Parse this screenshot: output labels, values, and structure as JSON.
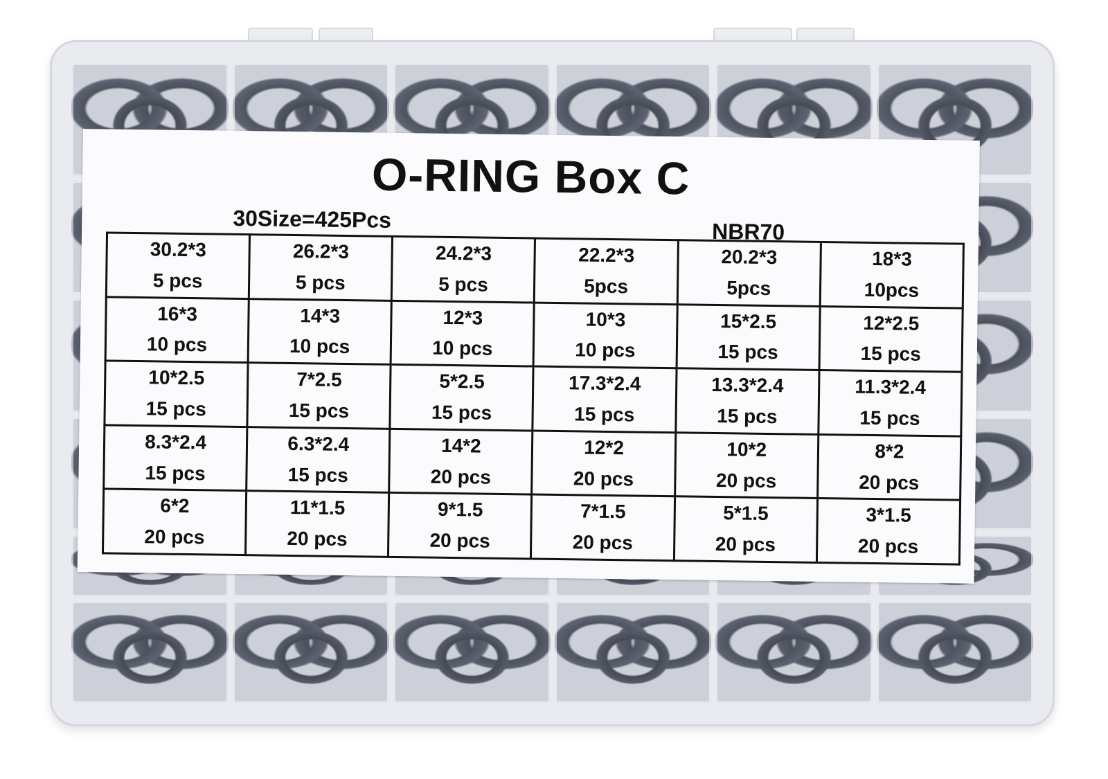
{
  "label": {
    "title": "O-RING Box C",
    "summary": "30Size=425Pcs",
    "material": "NBR70",
    "rows": [
      [
        {
          "size": "30.2*3",
          "qty": "5 pcs"
        },
        {
          "size": "26.2*3",
          "qty": "5 pcs"
        },
        {
          "size": "24.2*3",
          "qty": "5 pcs"
        },
        {
          "size": "22.2*3",
          "qty": "5pcs"
        },
        {
          "size": "20.2*3",
          "qty": "5pcs"
        },
        {
          "size": "18*3",
          "qty": "10pcs"
        }
      ],
      [
        {
          "size": "16*3",
          "qty": "10 pcs"
        },
        {
          "size": "14*3",
          "qty": "10 pcs"
        },
        {
          "size": "12*3",
          "qty": "10 pcs"
        },
        {
          "size": "10*3",
          "qty": "10 pcs"
        },
        {
          "size": "15*2.5",
          "qty": "15 pcs"
        },
        {
          "size": "12*2.5",
          "qty": "15 pcs"
        }
      ],
      [
        {
          "size": "10*2.5",
          "qty": "15 pcs"
        },
        {
          "size": "7*2.5",
          "qty": "15 pcs"
        },
        {
          "size": "5*2.5",
          "qty": "15 pcs"
        },
        {
          "size": "17.3*2.4",
          "qty": "15 pcs"
        },
        {
          "size": "13.3*2.4",
          "qty": "15 pcs"
        },
        {
          "size": "11.3*2.4",
          "qty": "15 pcs"
        }
      ],
      [
        {
          "size": "8.3*2.4",
          "qty": "15 pcs"
        },
        {
          "size": "6.3*2.4",
          "qty": "15 pcs"
        },
        {
          "size": "14*2",
          "qty": "20 pcs"
        },
        {
          "size": "12*2",
          "qty": "20 pcs"
        },
        {
          "size": "10*2",
          "qty": "20 pcs"
        },
        {
          "size": "8*2",
          "qty": "20 pcs"
        }
      ],
      [
        {
          "size": "6*2",
          "qty": "20 pcs"
        },
        {
          "size": "11*1.5",
          "qty": "20 pcs"
        },
        {
          "size": "9*1.5",
          "qty": "20 pcs"
        },
        {
          "size": "7*1.5",
          "qty": "20 pcs"
        },
        {
          "size": "5*1.5",
          "qty": "20 pcs"
        },
        {
          "size": "3*1.5",
          "qty": "20 pcs"
        }
      ]
    ]
  },
  "colors": {
    "box": "#e9ebf0",
    "rings": "#2a2f3a",
    "label": "#fbfbfe"
  }
}
